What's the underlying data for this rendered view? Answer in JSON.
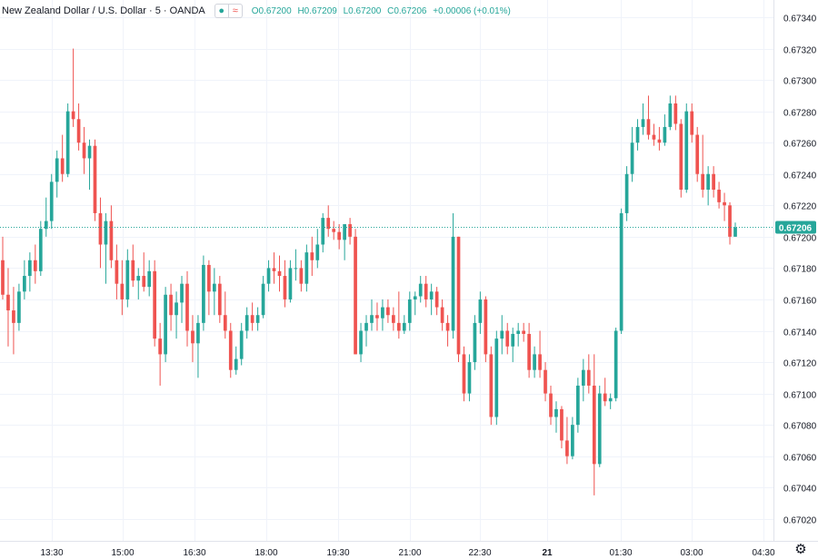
{
  "legend": {
    "symbol_name": "New Zealand Dollar / U.S. Dollar · 5 · OANDA",
    "eye_icon": "eye-icon",
    "wave_icon": "wave-icon",
    "o": "O0.67200",
    "h": "H0.67209",
    "l": "L0.67200",
    "c": "C0.67206",
    "change": "+0.00006 (+0.01%)"
  },
  "colors": {
    "up": "#26a69a",
    "down": "#ef5350",
    "grid": "#f0f3fa",
    "axis_text": "#131722",
    "price_line": "#26a69a"
  },
  "settings_icon": "gear-icon",
  "chart_data": {
    "type": "candlestick",
    "title": "New Zealand Dollar / U.S. Dollar · 5 · OANDA",
    "xlabel": "",
    "ylabel": "",
    "ylim": [
      0.6701,
      0.6736
    ],
    "y_ticks": [
      "0.67340",
      "0.67320",
      "0.67300",
      "0.67280",
      "0.67260",
      "0.67240",
      "0.67220",
      "0.67200",
      "0.67180",
      "0.67160",
      "0.67140",
      "0.67120",
      "0.67100",
      "0.67080",
      "0.67060",
      "0.67040",
      "0.67020"
    ],
    "x_ticks": [
      "13:30",
      "15:00",
      "16:30",
      "18:00",
      "19:30",
      "21:00",
      "22:30",
      "21",
      "01:30",
      "03:00",
      "04:30"
    ],
    "grid": true,
    "last_price": "0.67206",
    "candles": [
      {
        "o": 0.67185,
        "h": 0.672,
        "l": 0.6716,
        "c": 0.67163
      },
      {
        "o": 0.67163,
        "h": 0.6718,
        "l": 0.6713,
        "c": 0.67153
      },
      {
        "o": 0.67153,
        "h": 0.67168,
        "l": 0.67125,
        "c": 0.67145
      },
      {
        "o": 0.67145,
        "h": 0.6717,
        "l": 0.6714,
        "c": 0.67165
      },
      {
        "o": 0.67165,
        "h": 0.67185,
        "l": 0.6716,
        "c": 0.67175
      },
      {
        "o": 0.67175,
        "h": 0.6719,
        "l": 0.67165,
        "c": 0.67185
      },
      {
        "o": 0.67185,
        "h": 0.67195,
        "l": 0.6717,
        "c": 0.67178
      },
      {
        "o": 0.67178,
        "h": 0.6721,
        "l": 0.67175,
        "c": 0.67205
      },
      {
        "o": 0.67205,
        "h": 0.67225,
        "l": 0.672,
        "c": 0.6721
      },
      {
        "o": 0.6721,
        "h": 0.6724,
        "l": 0.67205,
        "c": 0.67235
      },
      {
        "o": 0.67235,
        "h": 0.67255,
        "l": 0.67225,
        "c": 0.6725
      },
      {
        "o": 0.6725,
        "h": 0.67265,
        "l": 0.67235,
        "c": 0.6724
      },
      {
        "o": 0.6724,
        "h": 0.67285,
        "l": 0.67238,
        "c": 0.6728
      },
      {
        "o": 0.6728,
        "h": 0.6732,
        "l": 0.6727,
        "c": 0.67275
      },
      {
        "o": 0.67275,
        "h": 0.67285,
        "l": 0.67255,
        "c": 0.6726
      },
      {
        "o": 0.6726,
        "h": 0.6727,
        "l": 0.6724,
        "c": 0.6725
      },
      {
        "o": 0.6725,
        "h": 0.67262,
        "l": 0.6723,
        "c": 0.67258
      },
      {
        "o": 0.67258,
        "h": 0.67262,
        "l": 0.6721,
        "c": 0.67215
      },
      {
        "o": 0.67215,
        "h": 0.67225,
        "l": 0.6718,
        "c": 0.67195
      },
      {
        "o": 0.67195,
        "h": 0.67215,
        "l": 0.6717,
        "c": 0.6721
      },
      {
        "o": 0.6721,
        "h": 0.6722,
        "l": 0.6718,
        "c": 0.67185
      },
      {
        "o": 0.67185,
        "h": 0.67195,
        "l": 0.6716,
        "c": 0.6717
      },
      {
        "o": 0.6717,
        "h": 0.67185,
        "l": 0.6715,
        "c": 0.6716
      },
      {
        "o": 0.6716,
        "h": 0.67192,
        "l": 0.67155,
        "c": 0.67185
      },
      {
        "o": 0.67185,
        "h": 0.67195,
        "l": 0.67168,
        "c": 0.67172
      },
      {
        "o": 0.67172,
        "h": 0.6718,
        "l": 0.6716,
        "c": 0.67175
      },
      {
        "o": 0.67175,
        "h": 0.6719,
        "l": 0.67165,
        "c": 0.67168
      },
      {
        "o": 0.67168,
        "h": 0.67185,
        "l": 0.67162,
        "c": 0.67178
      },
      {
        "o": 0.67178,
        "h": 0.67185,
        "l": 0.6713,
        "c": 0.67135
      },
      {
        "o": 0.67135,
        "h": 0.67145,
        "l": 0.67105,
        "c": 0.67125
      },
      {
        "o": 0.67125,
        "h": 0.67168,
        "l": 0.6712,
        "c": 0.67163
      },
      {
        "o": 0.67163,
        "h": 0.6717,
        "l": 0.6714,
        "c": 0.6715
      },
      {
        "o": 0.6715,
        "h": 0.67165,
        "l": 0.67135,
        "c": 0.67158
      },
      {
        "o": 0.67158,
        "h": 0.67175,
        "l": 0.67145,
        "c": 0.6717
      },
      {
        "o": 0.6717,
        "h": 0.67178,
        "l": 0.6713,
        "c": 0.6714
      },
      {
        "o": 0.6714,
        "h": 0.6715,
        "l": 0.6712,
        "c": 0.67132
      },
      {
        "o": 0.67132,
        "h": 0.6715,
        "l": 0.6711,
        "c": 0.67145
      },
      {
        "o": 0.67145,
        "h": 0.67188,
        "l": 0.6714,
        "c": 0.67182
      },
      {
        "o": 0.67182,
        "h": 0.67185,
        "l": 0.6715,
        "c": 0.67165
      },
      {
        "o": 0.67165,
        "h": 0.6718,
        "l": 0.6715,
        "c": 0.6717
      },
      {
        "o": 0.6717,
        "h": 0.67175,
        "l": 0.67145,
        "c": 0.6715
      },
      {
        "o": 0.6715,
        "h": 0.67165,
        "l": 0.67135,
        "c": 0.6714
      },
      {
        "o": 0.6714,
        "h": 0.67145,
        "l": 0.6711,
        "c": 0.67115
      },
      {
        "o": 0.67115,
        "h": 0.6713,
        "l": 0.67112,
        "c": 0.67122
      },
      {
        "o": 0.67122,
        "h": 0.67145,
        "l": 0.67118,
        "c": 0.6714
      },
      {
        "o": 0.6714,
        "h": 0.67155,
        "l": 0.67135,
        "c": 0.6715
      },
      {
        "o": 0.6715,
        "h": 0.67158,
        "l": 0.6714,
        "c": 0.67145
      },
      {
        "o": 0.67145,
        "h": 0.67155,
        "l": 0.6714,
        "c": 0.6715
      },
      {
        "o": 0.6715,
        "h": 0.67175,
        "l": 0.67148,
        "c": 0.6717
      },
      {
        "o": 0.6717,
        "h": 0.67185,
        "l": 0.67165,
        "c": 0.6718
      },
      {
        "o": 0.6718,
        "h": 0.6719,
        "l": 0.6717,
        "c": 0.67178
      },
      {
        "o": 0.67178,
        "h": 0.67188,
        "l": 0.67165,
        "c": 0.67175
      },
      {
        "o": 0.67175,
        "h": 0.67185,
        "l": 0.67155,
        "c": 0.6716
      },
      {
        "o": 0.6716,
        "h": 0.67185,
        "l": 0.67158,
        "c": 0.6718
      },
      {
        "o": 0.6718,
        "h": 0.67192,
        "l": 0.67172,
        "c": 0.6718
      },
      {
        "o": 0.6718,
        "h": 0.67185,
        "l": 0.67165,
        "c": 0.6717
      },
      {
        "o": 0.6717,
        "h": 0.67195,
        "l": 0.67165,
        "c": 0.6719
      },
      {
        "o": 0.6719,
        "h": 0.672,
        "l": 0.67175,
        "c": 0.67185
      },
      {
        "o": 0.67185,
        "h": 0.67205,
        "l": 0.6718,
        "c": 0.67195
      },
      {
        "o": 0.67195,
        "h": 0.67215,
        "l": 0.6719,
        "c": 0.67212
      },
      {
        "o": 0.67212,
        "h": 0.6722,
        "l": 0.672,
        "c": 0.67205
      },
      {
        "o": 0.67205,
        "h": 0.6721,
        "l": 0.67198,
        "c": 0.67203
      },
      {
        "o": 0.67203,
        "h": 0.67208,
        "l": 0.67192,
        "c": 0.67198
      },
      {
        "o": 0.67198,
        "h": 0.67205,
        "l": 0.67185,
        "c": 0.67208
      },
      {
        "o": 0.67208,
        "h": 0.67212,
        "l": 0.67195,
        "c": 0.672
      },
      {
        "o": 0.672,
        "h": 0.67205,
        "l": 0.67125,
        "c": 0.67125
      },
      {
        "o": 0.67125,
        "h": 0.67145,
        "l": 0.6712,
        "c": 0.6714
      },
      {
        "o": 0.6714,
        "h": 0.6715,
        "l": 0.6713,
        "c": 0.67145
      },
      {
        "o": 0.67145,
        "h": 0.6716,
        "l": 0.6714,
        "c": 0.6715
      },
      {
        "o": 0.6715,
        "h": 0.67158,
        "l": 0.6714,
        "c": 0.67148
      },
      {
        "o": 0.67148,
        "h": 0.6716,
        "l": 0.6714,
        "c": 0.67155
      },
      {
        "o": 0.67155,
        "h": 0.6716,
        "l": 0.67145,
        "c": 0.6715
      },
      {
        "o": 0.6715,
        "h": 0.67155,
        "l": 0.6714,
        "c": 0.67145
      },
      {
        "o": 0.67145,
        "h": 0.67165,
        "l": 0.67135,
        "c": 0.6714
      },
      {
        "o": 0.6714,
        "h": 0.6715,
        "l": 0.67138,
        "c": 0.67145
      },
      {
        "o": 0.67145,
        "h": 0.67165,
        "l": 0.6714,
        "c": 0.6716
      },
      {
        "o": 0.6716,
        "h": 0.67165,
        "l": 0.6715,
        "c": 0.67162
      },
      {
        "o": 0.67162,
        "h": 0.67175,
        "l": 0.67158,
        "c": 0.6717
      },
      {
        "o": 0.6717,
        "h": 0.67175,
        "l": 0.67155,
        "c": 0.6716
      },
      {
        "o": 0.6716,
        "h": 0.6717,
        "l": 0.6715,
        "c": 0.67165
      },
      {
        "o": 0.67165,
        "h": 0.67168,
        "l": 0.6715,
        "c": 0.67155
      },
      {
        "o": 0.67155,
        "h": 0.6716,
        "l": 0.6714,
        "c": 0.67145
      },
      {
        "o": 0.67145,
        "h": 0.6715,
        "l": 0.6713,
        "c": 0.6714
      },
      {
        "o": 0.6714,
        "h": 0.67215,
        "l": 0.67135,
        "c": 0.672
      },
      {
        "o": 0.672,
        "h": 0.672,
        "l": 0.6712,
        "c": 0.67125
      },
      {
        "o": 0.67125,
        "h": 0.6713,
        "l": 0.67095,
        "c": 0.671
      },
      {
        "o": 0.671,
        "h": 0.67125,
        "l": 0.67095,
        "c": 0.6712
      },
      {
        "o": 0.6712,
        "h": 0.6715,
        "l": 0.67115,
        "c": 0.67145
      },
      {
        "o": 0.67145,
        "h": 0.67165,
        "l": 0.67138,
        "c": 0.6716
      },
      {
        "o": 0.6716,
        "h": 0.67162,
        "l": 0.6712,
        "c": 0.67125
      },
      {
        "o": 0.67125,
        "h": 0.6713,
        "l": 0.6708,
        "c": 0.67085
      },
      {
        "o": 0.67085,
        "h": 0.6714,
        "l": 0.6708,
        "c": 0.67135
      },
      {
        "o": 0.67135,
        "h": 0.6715,
        "l": 0.67125,
        "c": 0.6714
      },
      {
        "o": 0.6714,
        "h": 0.67145,
        "l": 0.67125,
        "c": 0.6713
      },
      {
        "o": 0.6713,
        "h": 0.67142,
        "l": 0.6712,
        "c": 0.67138
      },
      {
        "o": 0.67138,
        "h": 0.67145,
        "l": 0.6713,
        "c": 0.6714
      },
      {
        "o": 0.6714,
        "h": 0.67145,
        "l": 0.67133,
        "c": 0.67138
      },
      {
        "o": 0.67138,
        "h": 0.67145,
        "l": 0.6711,
        "c": 0.67115
      },
      {
        "o": 0.67115,
        "h": 0.6713,
        "l": 0.6711,
        "c": 0.67125
      },
      {
        "o": 0.67125,
        "h": 0.6714,
        "l": 0.6711,
        "c": 0.67115
      },
      {
        "o": 0.67115,
        "h": 0.6712,
        "l": 0.67095,
        "c": 0.671
      },
      {
        "o": 0.671,
        "h": 0.67105,
        "l": 0.6708,
        "c": 0.67085
      },
      {
        "o": 0.67085,
        "h": 0.67095,
        "l": 0.67075,
        "c": 0.6709
      },
      {
        "o": 0.6709,
        "h": 0.67092,
        "l": 0.67065,
        "c": 0.6707
      },
      {
        "o": 0.6707,
        "h": 0.67085,
        "l": 0.67055,
        "c": 0.6706
      },
      {
        "o": 0.6706,
        "h": 0.67085,
        "l": 0.67058,
        "c": 0.6708
      },
      {
        "o": 0.6708,
        "h": 0.6711,
        "l": 0.67075,
        "c": 0.67105
      },
      {
        "o": 0.67105,
        "h": 0.67122,
        "l": 0.67095,
        "c": 0.67115
      },
      {
        "o": 0.67115,
        "h": 0.67125,
        "l": 0.671,
        "c": 0.67105
      },
      {
        "o": 0.67105,
        "h": 0.67125,
        "l": 0.67035,
        "c": 0.67055
      },
      {
        "o": 0.67055,
        "h": 0.67105,
        "l": 0.67053,
        "c": 0.671
      },
      {
        "o": 0.671,
        "h": 0.6711,
        "l": 0.67092,
        "c": 0.67095
      },
      {
        "o": 0.67095,
        "h": 0.671,
        "l": 0.6709,
        "c": 0.67097
      },
      {
        "o": 0.67097,
        "h": 0.67142,
        "l": 0.67095,
        "c": 0.6714
      },
      {
        "o": 0.6714,
        "h": 0.67218,
        "l": 0.67138,
        "c": 0.67215
      },
      {
        "o": 0.67215,
        "h": 0.67245,
        "l": 0.6721,
        "c": 0.6724
      },
      {
        "o": 0.6724,
        "h": 0.6727,
        "l": 0.67235,
        "c": 0.6726
      },
      {
        "o": 0.6726,
        "h": 0.67275,
        "l": 0.67255,
        "c": 0.6727
      },
      {
        "o": 0.6727,
        "h": 0.67285,
        "l": 0.67265,
        "c": 0.67275
      },
      {
        "o": 0.67275,
        "h": 0.6729,
        "l": 0.67262,
        "c": 0.67265
      },
      {
        "o": 0.67265,
        "h": 0.67272,
        "l": 0.67258,
        "c": 0.67262
      },
      {
        "o": 0.67262,
        "h": 0.6727,
        "l": 0.67255,
        "c": 0.6726
      },
      {
        "o": 0.6726,
        "h": 0.67278,
        "l": 0.67258,
        "c": 0.6727
      },
      {
        "o": 0.6727,
        "h": 0.6729,
        "l": 0.67268,
        "c": 0.67285
      },
      {
        "o": 0.67285,
        "h": 0.6729,
        "l": 0.67268,
        "c": 0.67272
      },
      {
        "o": 0.67272,
        "h": 0.67275,
        "l": 0.67225,
        "c": 0.6723
      },
      {
        "o": 0.6723,
        "h": 0.67285,
        "l": 0.67228,
        "c": 0.6728
      },
      {
        "o": 0.6728,
        "h": 0.67285,
        "l": 0.6726,
        "c": 0.67265
      },
      {
        "o": 0.67265,
        "h": 0.6727,
        "l": 0.67235,
        "c": 0.6724
      },
      {
        "o": 0.6724,
        "h": 0.67265,
        "l": 0.67225,
        "c": 0.6723
      },
      {
        "o": 0.6723,
        "h": 0.67245,
        "l": 0.6722,
        "c": 0.6724
      },
      {
        "o": 0.6724,
        "h": 0.67245,
        "l": 0.67225,
        "c": 0.6723
      },
      {
        "o": 0.6723,
        "h": 0.67235,
        "l": 0.67218,
        "c": 0.67222
      },
      {
        "o": 0.67222,
        "h": 0.67228,
        "l": 0.6721,
        "c": 0.6722
      },
      {
        "o": 0.6722,
        "h": 0.67222,
        "l": 0.67195,
        "c": 0.672
      },
      {
        "o": 0.672,
        "h": 0.67209,
        "l": 0.672,
        "c": 0.67206
      }
    ]
  }
}
